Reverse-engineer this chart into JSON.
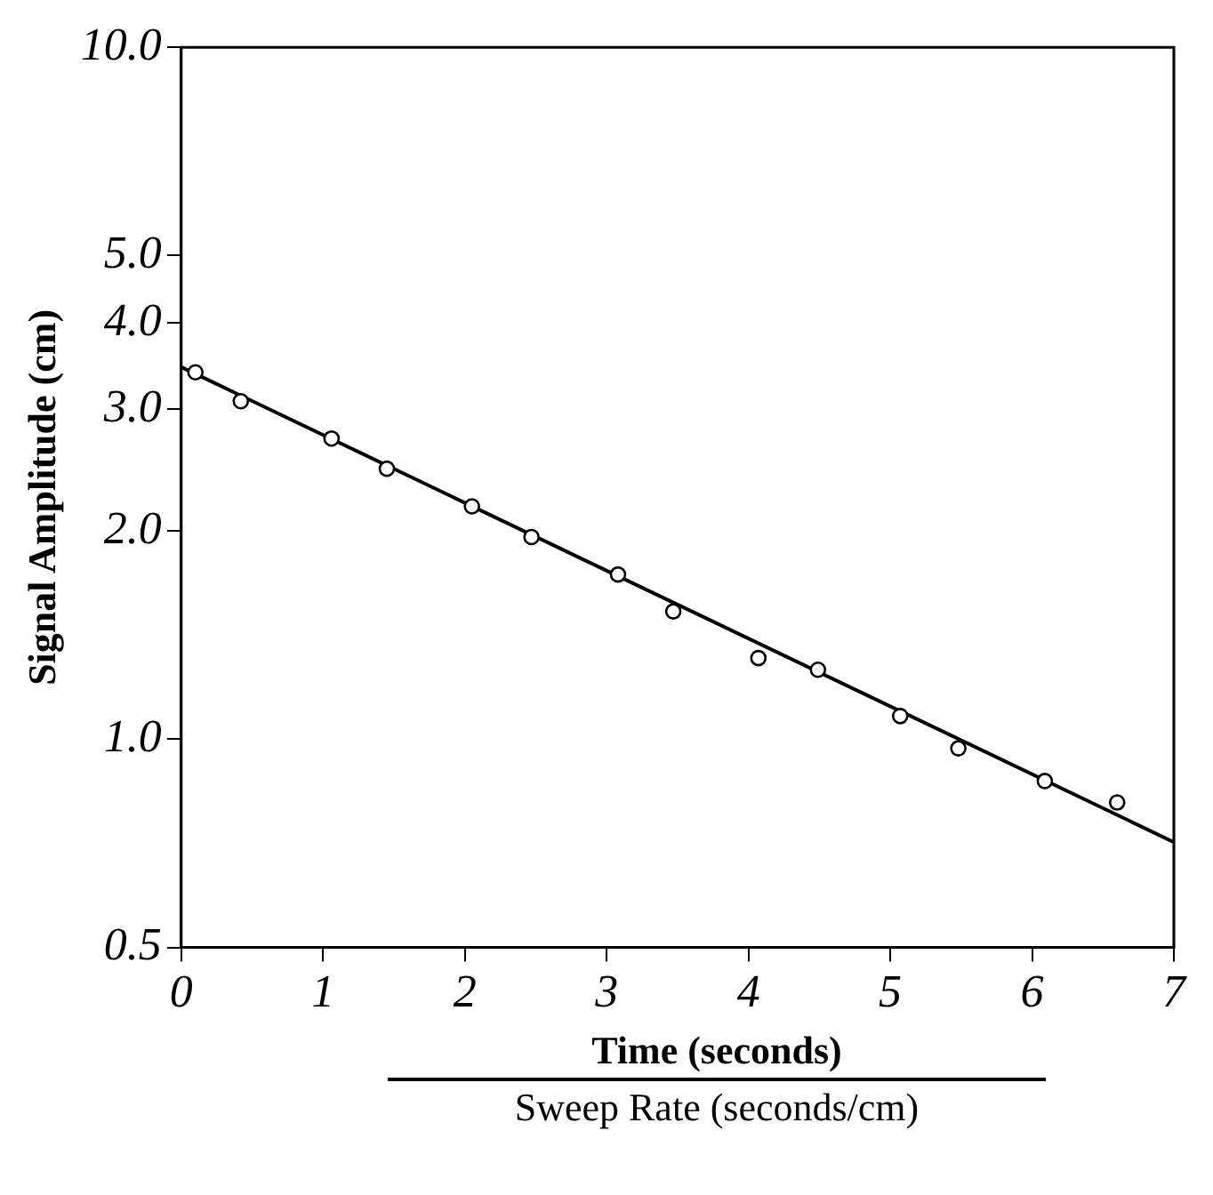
{
  "chart_data": {
    "type": "scatter",
    "xlabel": "Time (seconds)",
    "ylabel": "Signal Amplitude (cm)",
    "annotations": [
      "Sweep Rate (seconds/cm)"
    ],
    "series": [
      {
        "color": "#000000",
        "marker": "circle",
        "x": [
          0.1,
          0.42,
          1.06,
          1.45,
          2.05,
          2.47,
          3.08,
          3.47,
          4.07,
          4.49,
          5.07,
          5.48,
          6.09,
          6.6
        ],
        "values": [
          3.39,
          3.08,
          2.72,
          2.46,
          2.17,
          1.96,
          1.73,
          1.53,
          1.31,
          1.26,
          1.08,
          0.97,
          0.87,
          0.81
        ]
      },
      {
        "type": "line",
        "color": "#000000",
        "marker": "none",
        "line_style": "solid",
        "x": [
          0,
          7
        ],
        "values": [
          3.45,
          0.71
        ]
      }
    ],
    "xlim": [
      0,
      7
    ],
    "xticks": [
      0,
      1,
      2,
      3,
      4,
      5,
      6,
      7
    ],
    "ylim": [
      0.5,
      10
    ],
    "yticks": [
      {
        "value": 0.5,
        "label": "0.5"
      },
      {
        "value": 1,
        "label": "1.0"
      },
      {
        "value": 2,
        "label": "2.0"
      },
      {
        "value": 3,
        "label": "3.0"
      },
      {
        "value": 4,
        "label": "4.0"
      },
      {
        "value": 5,
        "label": "5.0"
      },
      {
        "value": 10,
        "label": "10.0"
      }
    ],
    "log": "y",
    "grid": false,
    "legend": false
  }
}
